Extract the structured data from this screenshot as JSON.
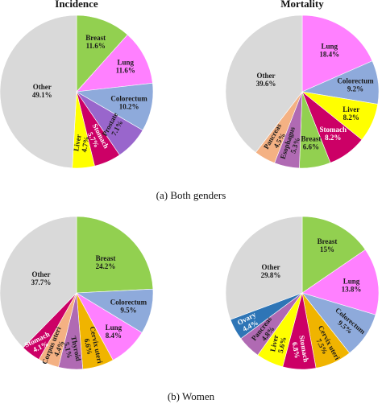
{
  "panel_a_caption": "(a) Both genders",
  "panel_b_caption": "(b) Women",
  "chart_data": [
    {
      "type": "pie",
      "title": "Incidence",
      "slices": [
        {
          "label": "Breast",
          "value": 11.6,
          "value_label": "11.6%",
          "color": "#92d050"
        },
        {
          "label": "Lung",
          "value": 11.6,
          "value_label": "11.6%",
          "color": "#ff80ff"
        },
        {
          "label": "Colorectum",
          "value": 10.2,
          "value_label": "10.2%",
          "color": "#8eaadb"
        },
        {
          "label": "Prostate",
          "value": 7.1,
          "value_label": "7.1%",
          "color": "#9966cc"
        },
        {
          "label": "Stomach",
          "value": 5.7,
          "value_label": "5.7%",
          "color": "#cc0066"
        },
        {
          "label": "Liver",
          "value": 4.7,
          "value_label": "4.7%",
          "color": "#ffff00"
        },
        {
          "label": "Other",
          "value": 49.1,
          "value_label": "49.1%",
          "color": "#d9d9d9"
        }
      ]
    },
    {
      "type": "pie",
      "title": "Mortality",
      "slices": [
        {
          "label": "Lung",
          "value": 18.4,
          "value_label": "18.4%",
          "color": "#ff80ff"
        },
        {
          "label": "Colorectum",
          "value": 9.2,
          "value_label": "9.2%",
          "color": "#8eaadb"
        },
        {
          "label": "Liver",
          "value": 8.2,
          "value_label": "8.2%",
          "color": "#ffff00"
        },
        {
          "label": "Stomach",
          "value": 8.2,
          "value_label": "8.2%",
          "color": "#cc0066"
        },
        {
          "label": "Breast",
          "value": 6.6,
          "value_label": "6.6%",
          "color": "#92d050"
        },
        {
          "label": "Esophagus",
          "value": 5.3,
          "value_label": "5.3%",
          "color": "#b06ab3"
        },
        {
          "label": "Pancreas",
          "value": 4.5,
          "value_label": "4.5%",
          "color": "#f4b183"
        },
        {
          "label": "Other",
          "value": 39.6,
          "value_label": "39.6%",
          "color": "#d9d9d9"
        }
      ]
    },
    {
      "type": "pie",
      "title": "",
      "slices": [
        {
          "label": "Breast",
          "value": 24.2,
          "value_label": "24.2%",
          "color": "#92d050"
        },
        {
          "label": "Colorectum",
          "value": 9.5,
          "value_label": "9.5%",
          "color": "#8eaadb"
        },
        {
          "label": "Lung",
          "value": 8.4,
          "value_label": "8.4%",
          "color": "#ff80ff"
        },
        {
          "label": "Cervix uteri",
          "value": 6.6,
          "value_label": "6.6%",
          "color": "#f0b400"
        },
        {
          "label": "Thyroid",
          "value": 5.1,
          "value_label": "5.1%",
          "color": "#b06ab3"
        },
        {
          "label": "Corpus uteri",
          "value": 4.4,
          "value_label": "4.4%",
          "color": "#f4b183"
        },
        {
          "label": "Stomach",
          "value": 4.1,
          "value_label": "4.1%",
          "color": "#cc0066"
        },
        {
          "label": "Other",
          "value": 37.7,
          "value_label": "37.7%",
          "color": "#d9d9d9"
        }
      ]
    },
    {
      "type": "pie",
      "title": "",
      "slices": [
        {
          "label": "Breast",
          "value": 15,
          "value_label": "15%",
          "color": "#92d050"
        },
        {
          "label": "Lung",
          "value": 13.8,
          "value_label": "13.8%",
          "color": "#ff80ff"
        },
        {
          "label": "Colorectum",
          "value": 9.5,
          "value_label": "9.5%",
          "color": "#8eaadb"
        },
        {
          "label": "Cervix uteri",
          "value": 7.5,
          "value_label": "7.5%",
          "color": "#f0b400"
        },
        {
          "label": "Stomach",
          "value": 6.8,
          "value_label": "6.8%",
          "color": "#cc0066"
        },
        {
          "label": "Liver",
          "value": 5.6,
          "value_label": "5.6%",
          "color": "#ffff00"
        },
        {
          "label": "Pancreas",
          "value": 4.8,
          "value_label": "4.8%",
          "color": "#b06ab3"
        },
        {
          "label": "Ovary",
          "value": 4.4,
          "value_label": "4.4%",
          "color": "#2e75b6"
        },
        {
          "label": "Other",
          "value": 29.8,
          "value_label": "29.8%",
          "color": "#d9d9d9"
        }
      ]
    }
  ]
}
